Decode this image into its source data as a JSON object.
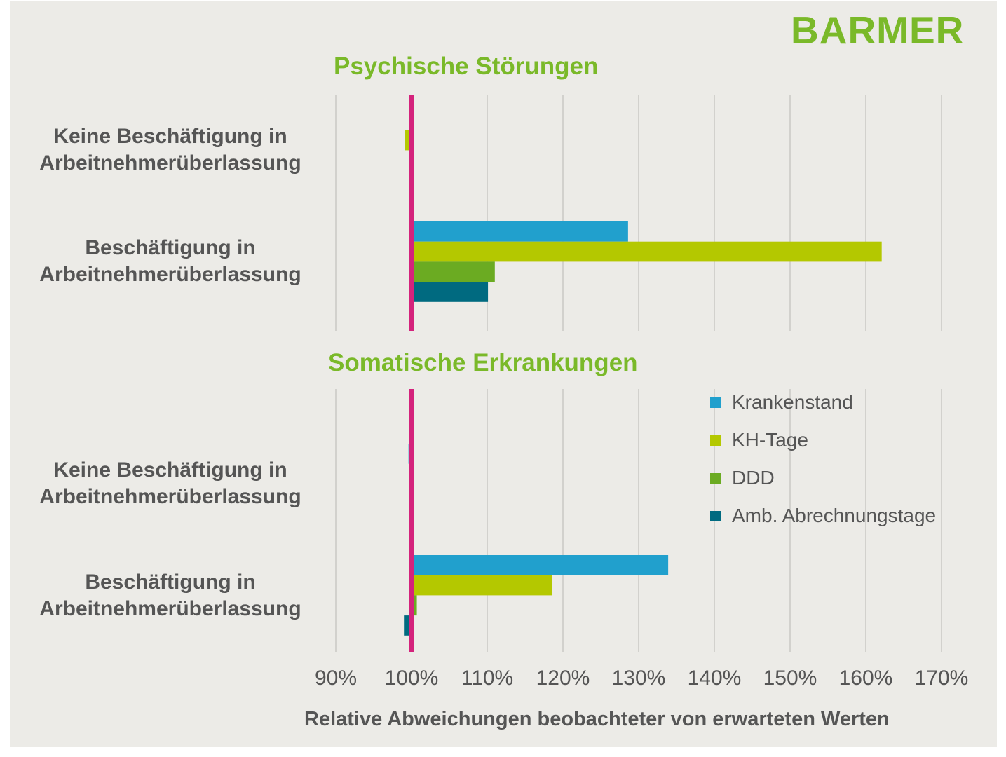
{
  "logo": "BARMER",
  "colors": {
    "background": "#ecebe7",
    "title": "#7ab929",
    "grid": "#d2d1cd",
    "reference_line": "#d4237c",
    "text": "#555555"
  },
  "legend": [
    {
      "name": "Krankenstand",
      "color": "#21a0cd"
    },
    {
      "name": "KH-Tage",
      "color": "#b4c800"
    },
    {
      "name": "DDD",
      "color": "#6bab22"
    },
    {
      "name": "Amb. Abrechnungstage",
      "color": "#006a80"
    }
  ],
  "axis": {
    "tick_labels": [
      "90%",
      "100%",
      "110%",
      "120%",
      "130%",
      "140%",
      "150%",
      "160%",
      "170%"
    ],
    "xlabel": "Relative Abweichungen beobachteter von erwarteten Werten"
  },
  "chart_data": [
    {
      "type": "bar",
      "orientation": "horizontal",
      "title": "Psychische Störungen",
      "categories": [
        [
          "Keine Beschäftigung in",
          "Arbeitnehmerüberlassung"
        ],
        [
          "Beschäftigung in",
          "Arbeitnehmerüberlassung"
        ]
      ],
      "series": [
        {
          "name": "Krankenstand",
          "values": [
            99.7,
            128.6
          ]
        },
        {
          "name": "KH-Tage",
          "values": [
            99.1,
            162.1
          ]
        },
        {
          "name": "DDD",
          "values": [
            100.0,
            111.0
          ]
        },
        {
          "name": "Amb. Abrechnungstage",
          "values": [
            100.0,
            110.1
          ]
        }
      ],
      "xlim": [
        90,
        170
      ],
      "reference_value": 100,
      "grid": true,
      "xlabel": "Relative Abweichungen beobachteter von erwarteten Werten"
    },
    {
      "type": "bar",
      "orientation": "horizontal",
      "title": "Somatische Erkrankungen",
      "categories": [
        [
          "Keine Beschäftigung in",
          "Arbeitnehmerüberlassung"
        ],
        [
          "Beschäftigung in",
          "Arbeitnehmerüberlassung"
        ]
      ],
      "series": [
        {
          "name": "Krankenstand",
          "values": [
            99.6,
            133.9
          ]
        },
        {
          "name": "KH-Tage",
          "values": [
            99.9,
            118.6
          ]
        },
        {
          "name": "DDD",
          "values": [
            100.0,
            100.7
          ]
        },
        {
          "name": "Amb. Abrechnungstage",
          "values": [
            100.0,
            99.0
          ]
        }
      ],
      "xlim": [
        90,
        170
      ],
      "reference_value": 100,
      "grid": true,
      "legend_position": "right",
      "xlabel": "Relative Abweichungen beobachteter von erwarteten Werten"
    }
  ]
}
